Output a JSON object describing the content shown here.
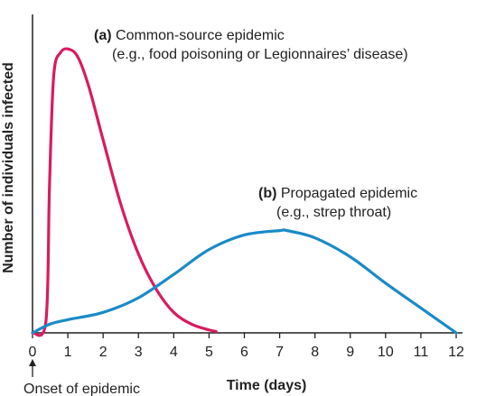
{
  "chart_data": {
    "type": "line",
    "xlabel": "Time (days)",
    "ylabel": "Number of individuals infected",
    "xlim": [
      0,
      12
    ],
    "ylim": [
      0,
      100
    ],
    "x_ticks": [
      "0",
      "1",
      "2",
      "3",
      "4",
      "5",
      "6",
      "7",
      "8",
      "9",
      "10",
      "11",
      "12"
    ],
    "grid": false,
    "series": [
      {
        "id": "common-source",
        "color": "#d81b60",
        "x": [
          0,
          0.38,
          0.48,
          0.6,
          0.8,
          1.05,
          1.3,
          1.6,
          2.0,
          2.5,
          3.0,
          3.5,
          4.0,
          4.5,
          5.0,
          5.2
        ],
        "y": [
          0,
          4,
          50,
          88,
          96,
          97,
          94,
          84,
          66,
          44,
          27,
          15,
          7,
          3,
          1,
          0.5
        ]
      },
      {
        "id": "propagated",
        "color": "#1a8ac8",
        "x": [
          0,
          0.5,
          1,
          2,
          3,
          4,
          5,
          6,
          7,
          7.2,
          8,
          9,
          10,
          11,
          12
        ],
        "y": [
          0,
          3,
          4.5,
          7,
          12,
          20,
          28.5,
          33.5,
          35,
          35,
          32.5,
          26,
          17,
          8.5,
          0
        ]
      }
    ],
    "annotations": {
      "a_label": "(a)",
      "a_title": " Common-source epidemic",
      "a_example": "(e.g., food poisoning or Legionnaires’ disease)",
      "b_label": "(b)",
      "b_title": " Propagated epidemic",
      "b_example": "(e.g., strep throat)",
      "onset": "Onset of epidemic"
    }
  }
}
